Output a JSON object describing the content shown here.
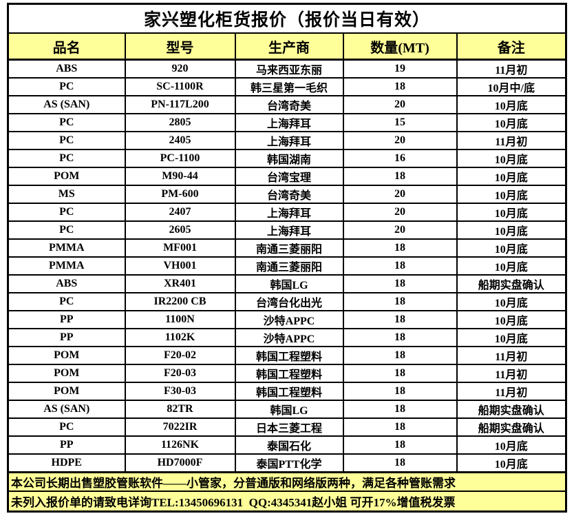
{
  "title": "家兴塑化柜货报价（报价当日有效）",
  "colors": {
    "highlight": "#FFFF99",
    "border": "#000000",
    "text": "#000000",
    "background": "#FFFFFF"
  },
  "table": {
    "headers": [
      "品名",
      "型号",
      "生产商",
      "数量(MT)",
      "备注"
    ],
    "rows": [
      [
        "ABS",
        "920",
        "马来西亚东丽",
        "19",
        "11月初"
      ],
      [
        "PC",
        "SC-1100R",
        "韩三星第一毛织",
        "18",
        "10月中/底"
      ],
      [
        "AS (SAN)",
        "PN-117L200",
        "台湾奇美",
        "20",
        "10月底"
      ],
      [
        "PC",
        "2805",
        "上海拜耳",
        "15",
        "10月底"
      ],
      [
        "PC",
        "2405",
        "上海拜耳",
        "20",
        "11月初"
      ],
      [
        "PC",
        "PC-1100",
        "韩国湖南",
        "16",
        "10月底"
      ],
      [
        "POM",
        "M90-44",
        "台湾宝理",
        "18",
        "10月底"
      ],
      [
        "MS",
        "PM-600",
        "台湾奇美",
        "20",
        "10月底"
      ],
      [
        "PC",
        "2407",
        "上海拜耳",
        "20",
        "10月底"
      ],
      [
        "PC",
        "2605",
        "上海拜耳",
        "20",
        "10月底"
      ],
      [
        "PMMA",
        "MF001",
        "南通三菱丽阳",
        "18",
        "10月底"
      ],
      [
        "PMMA",
        "VH001",
        "南通三菱丽阳",
        "18",
        "10月底"
      ],
      [
        "ABS",
        "XR401",
        "韩国LG",
        "18",
        "船期实盘确认"
      ],
      [
        "PC",
        "IR2200 CB",
        "台湾台化出光",
        "18",
        "10月底"
      ],
      [
        "PP",
        "1100N",
        "沙特APPC",
        "18",
        "10月底"
      ],
      [
        "PP",
        "1102K",
        "沙特APPC",
        "18",
        "10月底"
      ],
      [
        "POM",
        "F20-02",
        "韩国工程塑料",
        "18",
        "11月初"
      ],
      [
        "POM",
        "F20-03",
        "韩国工程塑料",
        "18",
        "11月初"
      ],
      [
        "POM",
        "F30-03",
        "韩国工程塑料",
        "18",
        "11月初"
      ],
      [
        "AS (SAN)",
        "82TR",
        "韩国LG",
        "18",
        "船期实盘确认"
      ],
      [
        "PC",
        "7022IR",
        "日本三菱工程",
        "18",
        "船期实盘确认"
      ],
      [
        "PP",
        "1126NK",
        "泰国石化",
        "18",
        "10月底"
      ],
      [
        "HDPE",
        "HD7000F",
        "泰国PTT化学",
        "18",
        "10月底"
      ]
    ]
  },
  "footer": {
    "line1": "本公司长期出售塑胶管账软件——小管家，分普通版和网络版两种，满足各种管账需求",
    "line2": "未列入报价单的请致电详询TEL:13450696131  QQ:4345341赵小姐 可开17%增值税发票"
  }
}
